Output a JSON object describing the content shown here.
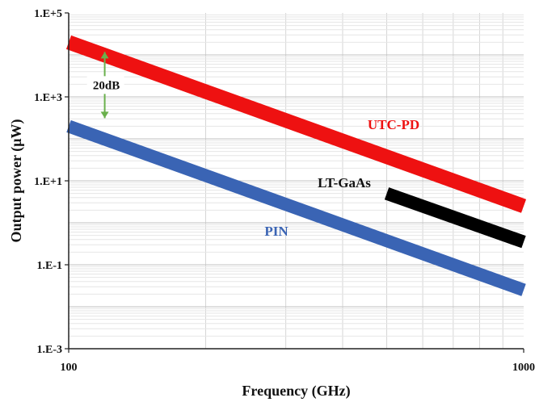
{
  "chart_data": {
    "type": "line",
    "title": "",
    "xlabel": "Frequency (GHz)",
    "ylabel": "Output power (μW)",
    "x_scale": "log",
    "y_scale": "log",
    "xlim": [
      100,
      1000
    ],
    "ylim": [
      0.001,
      100000
    ],
    "x_ticks": [
      100,
      1000
    ],
    "x_tick_labels": [
      "100",
      "1000"
    ],
    "y_ticks": [
      0.001,
      0.1,
      10,
      1000,
      100000
    ],
    "y_tick_labels": [
      "1.E-3",
      "1.E-1",
      "1.E+1",
      "1.E+3",
      "1.E+5"
    ],
    "grid": true,
    "legend": "none",
    "series": [
      {
        "name": "UTC-PD",
        "color": "#ee1111",
        "x": [
          100,
          1000
        ],
        "y": [
          20000,
          2.5
        ]
      },
      {
        "name": "LT-GaAs",
        "color": "#000000",
        "x": [
          500,
          1000
        ],
        "y": [
          5,
          0.35
        ]
      },
      {
        "name": "PIN",
        "color": "#3a64b4",
        "x": [
          100,
          1000
        ],
        "y": [
          200,
          0.025
        ]
      }
    ],
    "annotations": [
      {
        "text": "20dB",
        "x": 120,
        "y_from": 20000,
        "y_to": 200,
        "color": "#6ab04c"
      }
    ]
  }
}
